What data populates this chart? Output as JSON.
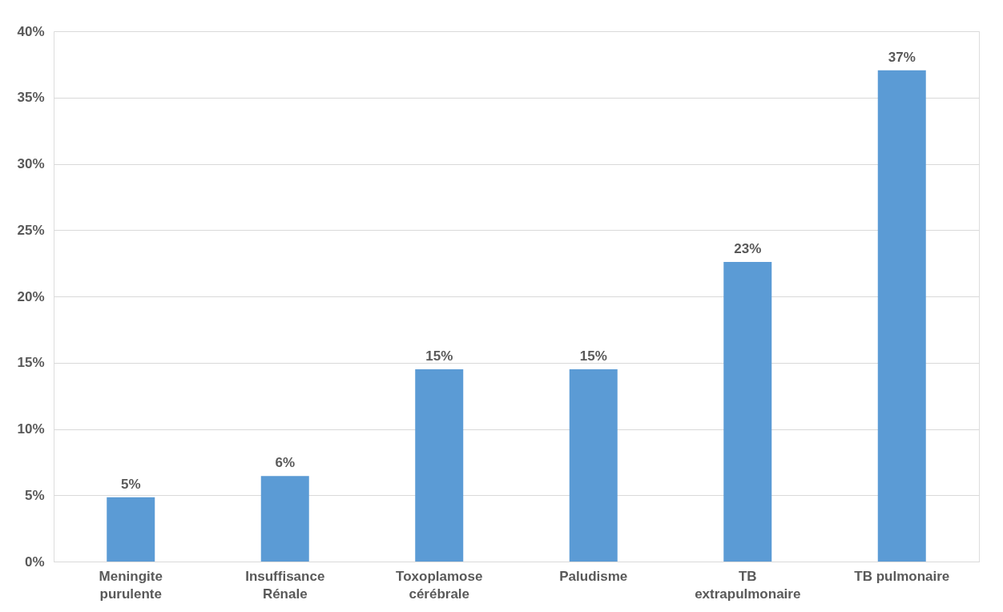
{
  "chart_data": {
    "type": "bar",
    "categories": [
      "Meningite\npurulente",
      "Insuffisance\nRénale",
      "Toxoplamose\ncérébrale",
      "Paludisme",
      "TB\nextrapulmonaire",
      "TB pulmonaire"
    ],
    "values": [
      4.85,
      6.45,
      14.5,
      14.5,
      22.6,
      37.05
    ],
    "value_labels": [
      "5%",
      "6%",
      "15%",
      "15%",
      "23%",
      "37%"
    ],
    "color": "#5b9bd5",
    "ylim": [
      0,
      40
    ],
    "yticks": [
      {
        "value": 0,
        "label": "0%"
      },
      {
        "value": 5,
        "label": "5%"
      },
      {
        "value": 10,
        "label": "10%"
      },
      {
        "value": 15,
        "label": "15%"
      },
      {
        "value": 20,
        "label": "20%"
      },
      {
        "value": 25,
        "label": "25%"
      },
      {
        "value": 30,
        "label": "30%"
      },
      {
        "value": 35,
        "label": "35%"
      },
      {
        "value": 40,
        "label": "40%"
      }
    ],
    "grid": "y"
  }
}
